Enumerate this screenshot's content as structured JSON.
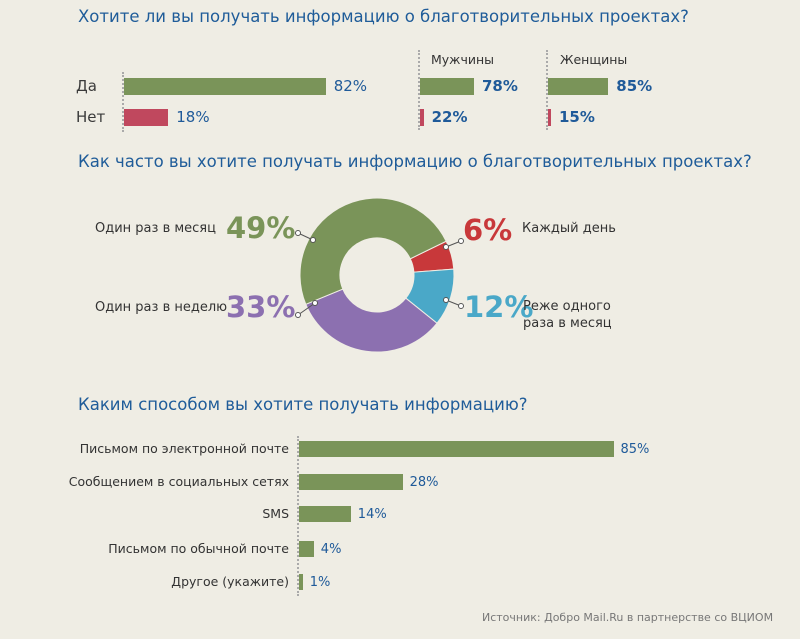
{
  "colors": {
    "green": "#7a9459",
    "red_bar": "#c0485e",
    "donut_red": "#c8383a",
    "donut_blue": "#4aa8c8",
    "donut_purple": "#8c70b0",
    "value_blue": "#1f5a99",
    "title_blue": "#1f5c99"
  },
  "chart_data": [
    {
      "type": "bar",
      "orientation": "horizontal",
      "title": "Хотите ли вы получать информацию о благотворительных проектах?",
      "categories": [
        "Да",
        "Нет"
      ],
      "series": [
        {
          "name": "",
          "values": [
            82,
            18
          ]
        },
        {
          "name": "Мужчины",
          "values": [
            78,
            22
          ]
        },
        {
          "name": "Женщины",
          "values": [
            85,
            15
          ]
        }
      ],
      "value_labels": {
        "all": [
          "82%",
          "18%"
        ],
        "men": [
          "78%",
          "22%"
        ],
        "women": [
          "85%",
          "15%"
        ]
      },
      "unit": "%"
    },
    {
      "type": "pie",
      "style": "donut",
      "title": "Как часто вы хотите получать информацию о благотворительных проектах?",
      "slices": [
        {
          "label": "Каждый день",
          "value": 6,
          "value_label": "6%",
          "color": "#c8383a"
        },
        {
          "label": "Реже одного раза в месяц",
          "label_lines": [
            "Реже одного",
            "раза в месяц"
          ],
          "value": 12,
          "value_label": "12%",
          "color": "#4aa8c8"
        },
        {
          "label": "Один раз в неделю",
          "value": 33,
          "value_label": "33%",
          "color": "#8c70b0"
        },
        {
          "label": "Один раз в месяц",
          "value": 49,
          "value_label": "49%",
          "color": "#7a9459"
        }
      ]
    },
    {
      "type": "bar",
      "orientation": "horizontal",
      "title": "Каким способом вы хотите получать информацию?",
      "categories": [
        "Письмом по электронной почте",
        "Сообщением в социальных сетях",
        "SMS",
        "Письмом по обычной почте",
        "Другое (укажите)"
      ],
      "values": [
        85,
        28,
        14,
        4,
        1
      ],
      "value_labels": [
        "85%",
        "28%",
        "14%",
        "4%",
        "1%"
      ],
      "unit": "%"
    }
  ],
  "source": "Источник: Добро Mail.Ru в партнерстве со ВЦИОМ"
}
